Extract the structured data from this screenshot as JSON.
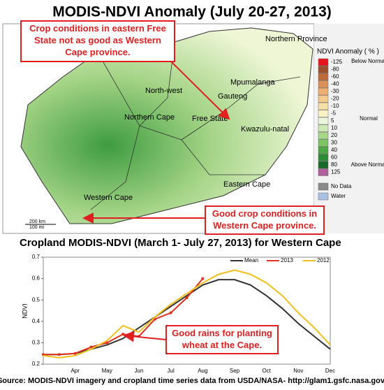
{
  "map": {
    "title": "MODIS-NDVI Anomaly (July 20-27, 2013)",
    "annotation_top": "Crop conditions in eastern Free State not as good as Western Cape province.",
    "annotation_bottom": "Good crop conditions in Western Cape province.",
    "regions": [
      "Northern Province",
      "North-west",
      "Mpumalanga",
      "Gauteng",
      "Northern Cape",
      "Free State",
      "Kwazulu-natal",
      "Eastern Cape",
      "Western Cape"
    ],
    "scale": [
      "200 km",
      "100 mi"
    ],
    "legend": {
      "title": "NDVI Anomaly ( % )",
      "values": [
        -125,
        -80,
        -60,
        -40,
        -30,
        -20,
        -10,
        -5,
        5,
        10,
        20,
        30,
        40,
        60,
        80,
        125
      ],
      "colors": [
        "#e8141c",
        "#9c4f2a",
        "#bd6c3a",
        "#dc9058",
        "#eeae70",
        "#f6c98c",
        "#f9dfa8",
        "#fcf1c4",
        "#eaf5dc",
        "#cde8b2",
        "#a6d88a",
        "#7cc464",
        "#4fa846",
        "#2d8a37",
        "#186a2a",
        "#b0609a"
      ],
      "groups": [
        "Below Normal",
        "Normal",
        "Above Normal"
      ],
      "extra": [
        "No Data",
        "Water"
      ],
      "extra_colors": [
        "#8a8a8a",
        "#a9c1e2"
      ]
    }
  },
  "chart_data": {
    "type": "line",
    "title": "Cropland MODIS-NDVI (March 1- July 27, 2013) for Western Cape",
    "y_label": "NDVI",
    "annotation": "Good rains for planting wheat at the Cape.",
    "categories": [
      null,
      null,
      "Apr",
      null,
      "May",
      null,
      "Jun",
      null,
      "Jul",
      null,
      "Aug",
      null,
      "Sep",
      null,
      "Oct",
      null,
      "Nov",
      null,
      "Dec"
    ],
    "series": [
      {
        "name": "Mean",
        "color": "#333333",
        "values": [
          0.245,
          0.245,
          0.25,
          0.27,
          0.29,
          0.32,
          0.37,
          0.42,
          0.47,
          0.52,
          0.57,
          0.595,
          0.595,
          0.57,
          0.52,
          0.46,
          0.39,
          0.33,
          0.27
        ]
      },
      {
        "name": "2013",
        "color": "#e03020",
        "values": [
          0.245,
          0.245,
          0.25,
          0.28,
          0.3,
          0.34,
          0.33,
          0.41,
          0.44,
          0.51,
          0.6,
          null,
          null,
          null,
          null,
          null,
          null,
          null,
          null
        ]
      },
      {
        "name": "2012",
        "color": "#f2c01e",
        "values": [
          0.24,
          0.23,
          0.24,
          0.27,
          0.31,
          0.38,
          0.35,
          0.42,
          0.48,
          0.53,
          0.58,
          0.62,
          0.64,
          0.62,
          0.58,
          0.52,
          0.44,
          0.37,
          0.29
        ]
      }
    ],
    "ylim": [
      0.2,
      0.7
    ],
    "yticks": [
      0.2,
      0.3,
      0.4,
      0.5,
      0.6,
      0.7
    ]
  },
  "footer": "Source: MODIS-NDVI imagery and cropland time series data from USDA/NASA- http://glam1.gsfc.nasa.gov/"
}
